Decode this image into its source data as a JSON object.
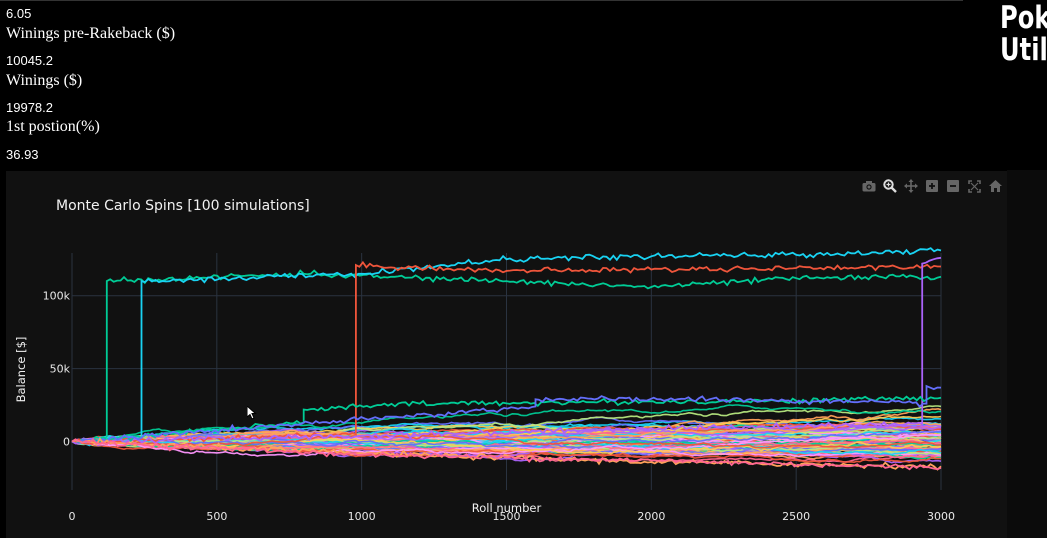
{
  "stats": {
    "top_value": "6.05",
    "pre_rakeback_label": "Winings pre-Rakeback ($)",
    "pre_rakeback_value": "10045.2",
    "winnings_label": "Winings ($)",
    "winnings_value": "19978.2",
    "first_position_label": "1st postion(%)",
    "first_position_value": "36.93"
  },
  "logo": {
    "text": "Pok\nUtil"
  },
  "modebar": {
    "icons": [
      "camera-icon",
      "zoom-icon",
      "pan-icon",
      "zoom-in-icon",
      "zoom-out-icon",
      "autoscale-icon",
      "home-icon"
    ]
  },
  "colors": {
    "background": "#000000",
    "plot_bg": "#111111",
    "grid": "#2a3340",
    "palette": [
      "#636efa",
      "#EF553B",
      "#00cc96",
      "#ab63fa",
      "#FFA15A",
      "#19d3f3",
      "#FF6692",
      "#B6E880",
      "#FF97FF",
      "#FECB52"
    ]
  },
  "chart_data": {
    "type": "line",
    "title": "Monte Carlo Spins [100 simulations]",
    "xlabel": "Roll number",
    "ylabel": "Balance [$]",
    "xlim": [
      0,
      3000
    ],
    "ylim": [
      -25000,
      143000
    ],
    "x_ticks": [
      0,
      500,
      1000,
      1500,
      2000,
      2500,
      3000
    ],
    "x_tick_labels": [
      "0",
      "500",
      "1000",
      "1500",
      "2000",
      "2500",
      "3000"
    ],
    "y_ticks": [
      0,
      50000,
      100000
    ],
    "y_tick_labels": [
      "0",
      "50k",
      "100k"
    ],
    "grid": true,
    "legend": "none",
    "num_series": 100,
    "series": [
      {
        "color": "#00cc96",
        "points": [
          [
            0,
            0
          ],
          [
            120,
            2000
          ],
          [
            120,
            110000
          ],
          [
            800,
            115000
          ],
          [
            1500,
            110000
          ],
          [
            2000,
            106000
          ],
          [
            2500,
            112000
          ],
          [
            3000,
            113000
          ]
        ]
      },
      {
        "color": "#19d3f3",
        "points": [
          [
            0,
            0
          ],
          [
            240,
            3000
          ],
          [
            240,
            110000
          ],
          [
            1000,
            115000
          ],
          [
            1500,
            125000
          ],
          [
            2000,
            127000
          ],
          [
            2500,
            128000
          ],
          [
            3000,
            131000
          ]
        ]
      },
      {
        "color": "#EF553B",
        "points": [
          [
            0,
            0
          ],
          [
            980,
            5000
          ],
          [
            980,
            121000
          ],
          [
            1500,
            117000
          ],
          [
            2000,
            118000
          ],
          [
            2500,
            119000
          ],
          [
            3000,
            120000
          ]
        ]
      },
      {
        "color": "#ab63fa",
        "points": [
          [
            0,
            0
          ],
          [
            1000,
            4000
          ],
          [
            2000,
            9000
          ],
          [
            2935,
            12000
          ],
          [
            2935,
            122000
          ],
          [
            3000,
            126000
          ]
        ]
      },
      {
        "color": "#00cc96",
        "points": [
          [
            0,
            0
          ],
          [
            800,
            13000
          ],
          [
            800,
            22000
          ],
          [
            1200,
            26000
          ],
          [
            1800,
            27000
          ],
          [
            2500,
            28000
          ],
          [
            3000,
            30000
          ]
        ]
      },
      {
        "color": "#636efa",
        "points": [
          [
            0,
            0
          ],
          [
            1600,
            24000
          ],
          [
            1600,
            29000
          ],
          [
            2200,
            29000
          ],
          [
            2950,
            26000
          ],
          [
            2950,
            38000
          ],
          [
            3000,
            37000
          ]
        ]
      },
      {
        "color": "#FFA15A",
        "points": [
          [
            0,
            0
          ],
          [
            1000,
            -8000
          ],
          [
            2000,
            -14000
          ],
          [
            3000,
            -17000
          ]
        ]
      },
      {
        "color": "#FF6692",
        "points": [
          [
            0,
            0
          ],
          [
            1000,
            -9000
          ],
          [
            2000,
            -13000
          ],
          [
            3000,
            -18000
          ]
        ]
      }
    ],
    "band": {
      "description": "remaining simulations spread roughly between",
      "low": -15000,
      "high": 30000
    }
  }
}
